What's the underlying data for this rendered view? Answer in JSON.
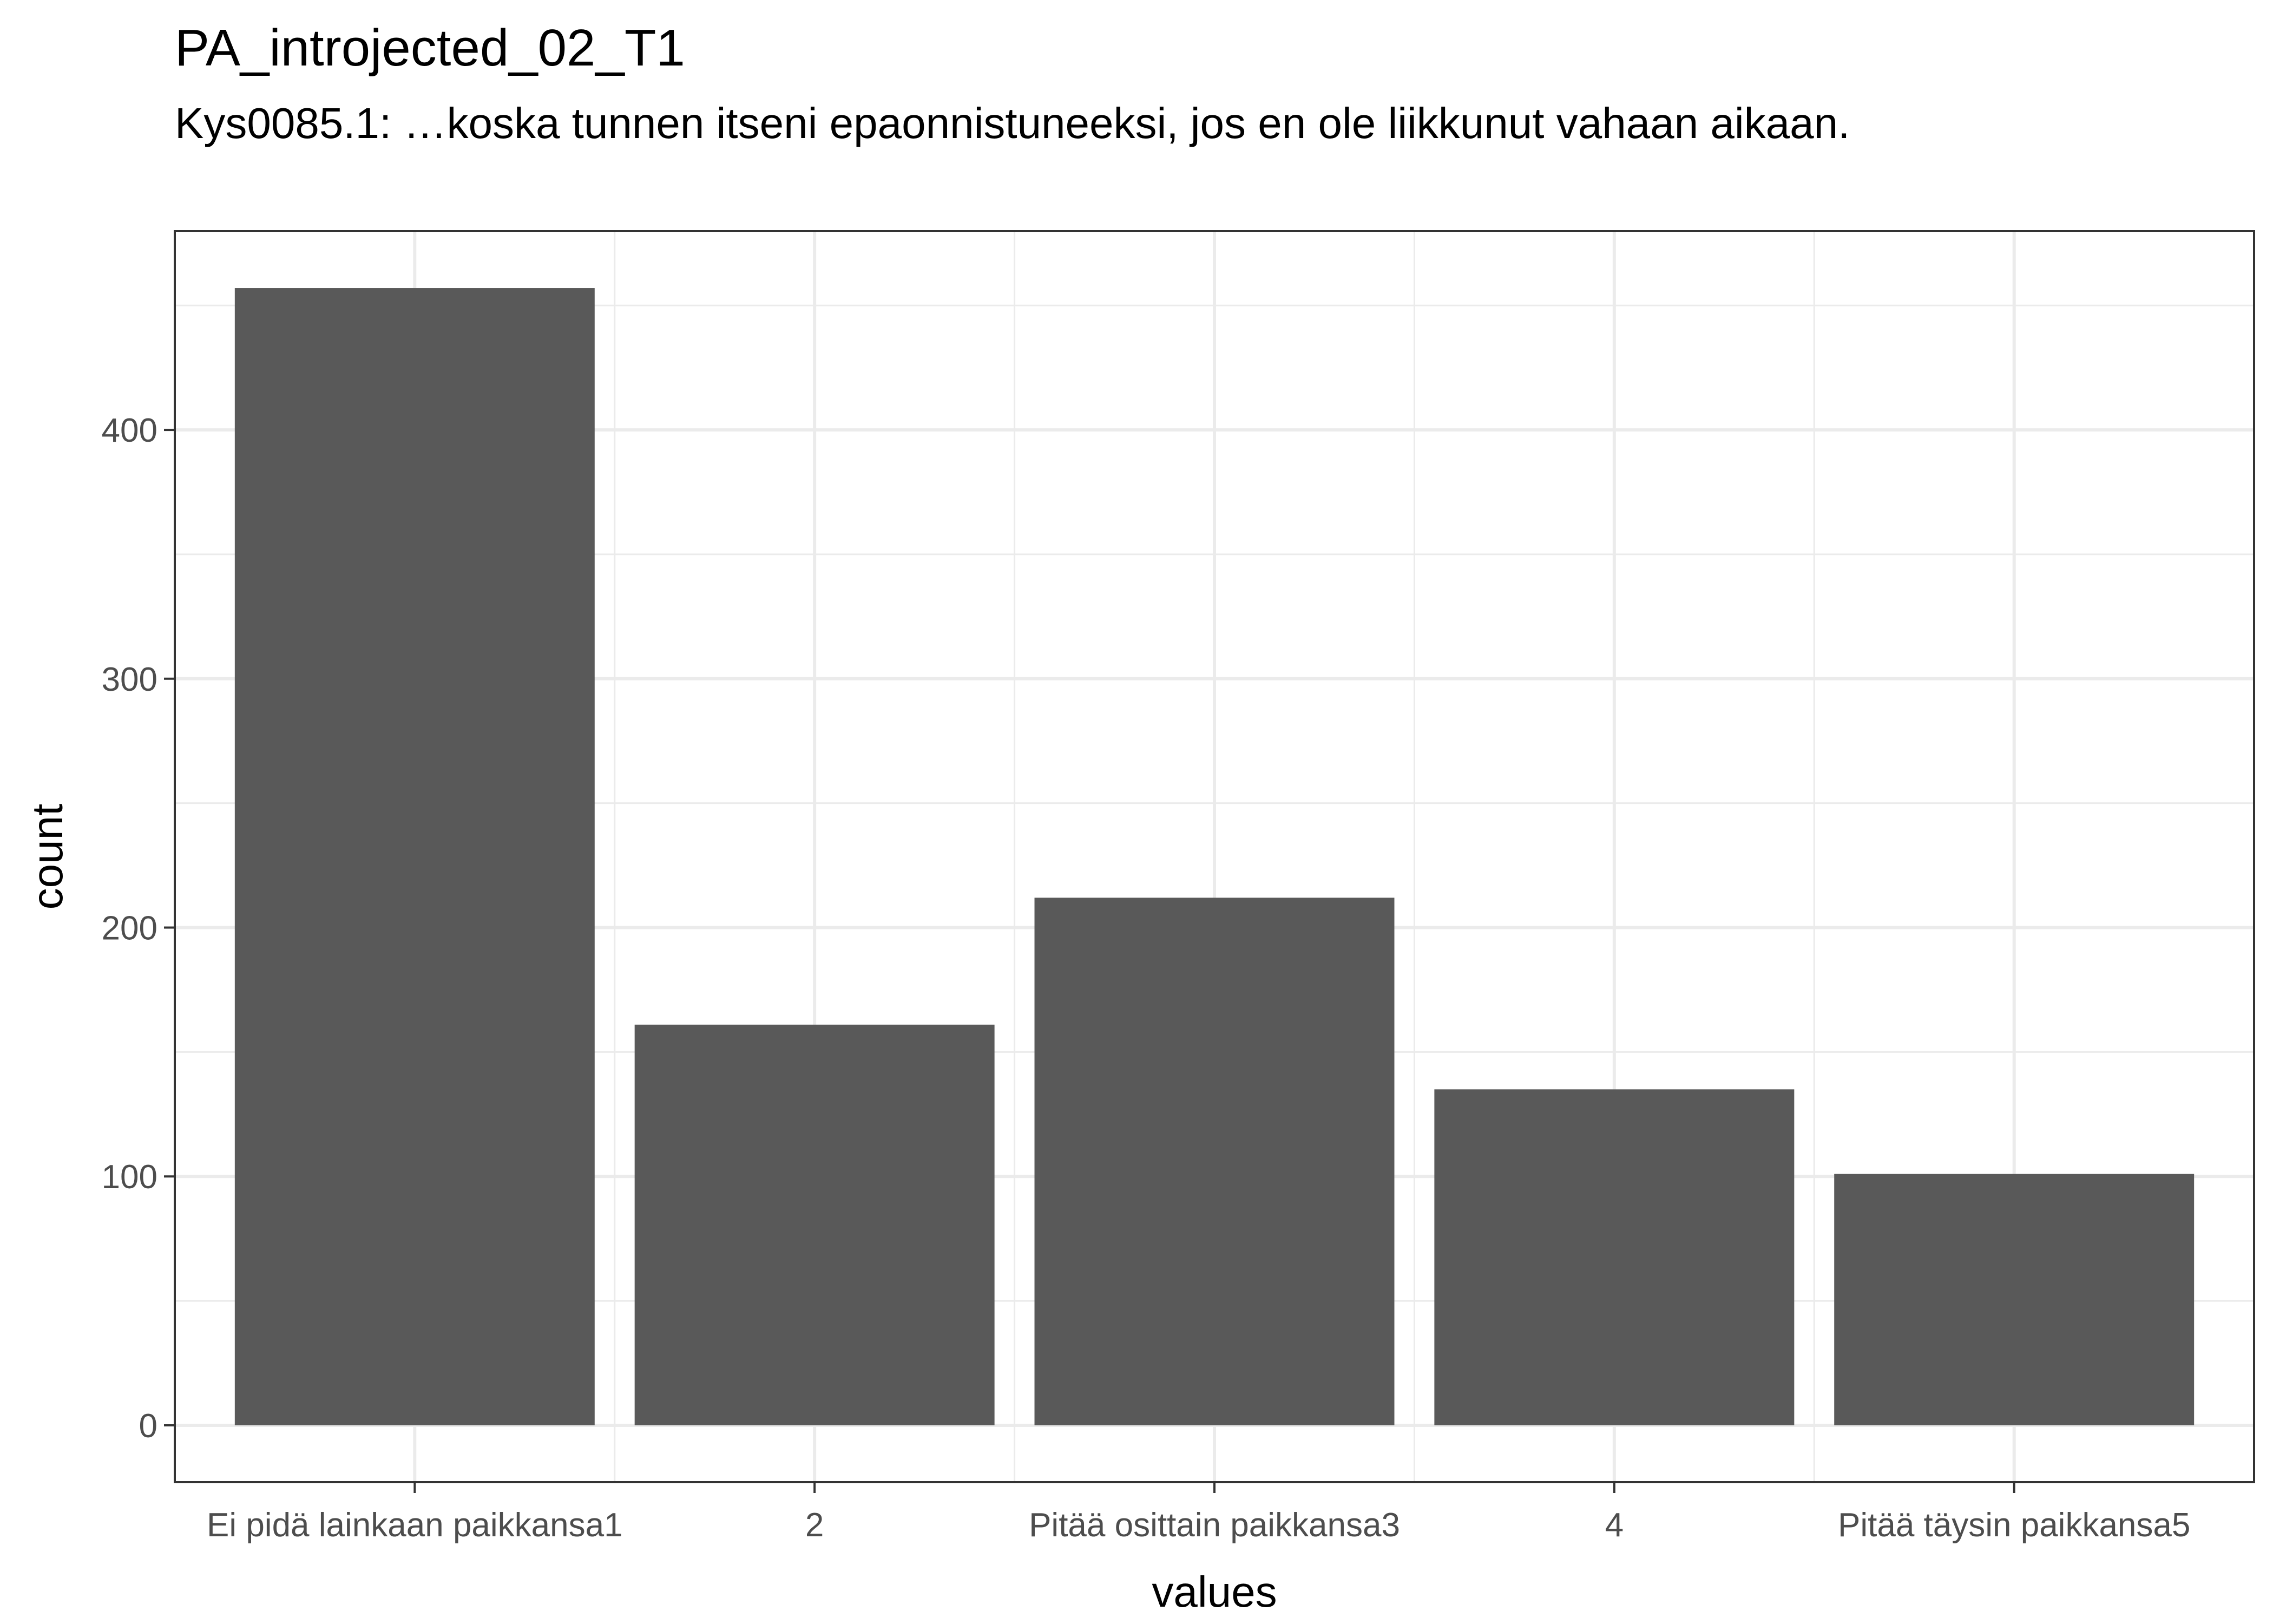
{
  "chart_data": {
    "type": "bar",
    "title": "PA_introjected_02_T1",
    "subtitle": "Kys0085.1: …koska tunnen itseni epaonnistuneeksi, jos en ole liikkunut vahaan aikaan.",
    "xlabel": "values",
    "ylabel": "count",
    "categories": [
      "Ei pidä lainkaan paikkansa1",
      "2",
      "Pitää osittain paikkansa3",
      "4",
      "Pitää täysin paikkansa5"
    ],
    "values": [
      457,
      161,
      212,
      135,
      101
    ],
    "yticks": [
      0,
      100,
      200,
      300,
      400
    ],
    "ylim": [
      -22.85,
      479.85
    ],
    "grid": true,
    "bar_color": "#595959",
    "theme": "bw"
  }
}
